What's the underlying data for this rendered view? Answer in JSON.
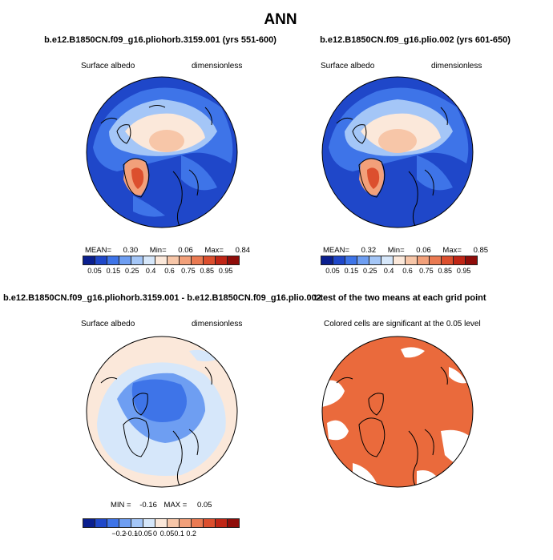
{
  "main_title": "ANN",
  "panels": {
    "tl": {
      "title": "b.e12.B1850CN.f09_g16.pliohorb.3159.001 (yrs 551-600)",
      "left_label": "Surface albedo",
      "right_label": "dimensionless",
      "stats": {
        "mean_label": "MEAN=",
        "mean": "0.30",
        "min_label": "Min=",
        "min": "0.06",
        "max_label": "Max=",
        "max": "0.84"
      }
    },
    "tr": {
      "title": "b.e12.B1850CN.f09_g16.plio.002 (yrs 601-650)",
      "left_label": "Surface albedo",
      "right_label": "dimensionless",
      "stats": {
        "mean_label": "MEAN=",
        "mean": "0.32",
        "min_label": "Min=",
        "min": "0.06",
        "max_label": "Max=",
        "max": "0.85"
      }
    },
    "bl": {
      "title": "b.e12.B1850CN.f09_g16.pliohorb.3159.001 - b.e12.B1850CN.f09_g16.plio.002",
      "left_label": "Surface albedo",
      "right_label": "dimensionless",
      "stats": {
        "min_label": "MIN =",
        "min": "-0.16",
        "max_label": "MAX =",
        "max": "0.05"
      }
    },
    "br": {
      "title": "t-test of the two means at each grid point",
      "note": "Colored cells are significant at the 0.05 level"
    }
  },
  "colorbar_abs": {
    "colors": [
      "#0a1f8f",
      "#1f47c9",
      "#3e74e8",
      "#6e9ef2",
      "#a4c6f7",
      "#d6e7fa",
      "#fbe8da",
      "#f7c6a8",
      "#f2a07a",
      "#ea7a52",
      "#dc4f2e",
      "#c02616",
      "#8f0d0a"
    ],
    "ticks": [
      "0.05",
      "0.15",
      "0.25",
      "0.4",
      "0.6",
      "0.75",
      "0.85",
      "0.95"
    ]
  },
  "colorbar_diff": {
    "colors": [
      "#0a1f8f",
      "#1f47c9",
      "#3e74e8",
      "#6e9ef2",
      "#a4c6f7",
      "#d6e7fa",
      "#fbe8da",
      "#f7c6a8",
      "#f2a07a",
      "#ea7a52",
      "#dc4f2e",
      "#c02616",
      "#8f0d0a"
    ],
    "ticks": [
      "−0.2",
      "−0.1",
      "−0.05",
      "0",
      "0.05",
      "0.1",
      "0.2"
    ]
  },
  "map_colors": {
    "ocean_low": "#1f47c9",
    "ocean_mid": "#3e74e8",
    "ice": "#fbe8da",
    "snow_high": "#f2a07a",
    "greenland_peak": "#dc4f2e",
    "diff_bg": "#fbe8da",
    "diff_light": "#d6e7fa",
    "diff_mid": "#6e9ef2",
    "diff_strong": "#3e74e8",
    "signif": "#ea6a3c"
  }
}
